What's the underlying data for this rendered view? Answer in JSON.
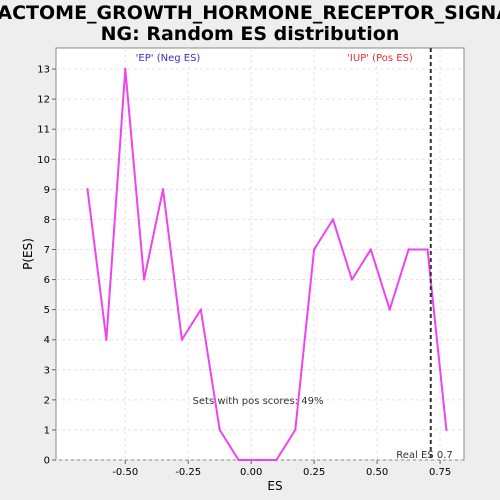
{
  "chart_data": {
    "type": "line",
    "title_lines": [
      "REACTOME_GROWTH_HORMONE_RECEPTOR_SIGNALI",
      "NG: Random ES distribution"
    ],
    "xlabel": "ES",
    "ylabel": "P(ES)",
    "xlim": [
      -0.775,
      0.845
    ],
    "ylim": [
      0,
      13.7
    ],
    "x_ticks": [
      {
        "value": -0.5,
        "label": "-0.50"
      },
      {
        "value": -0.25,
        "label": "-0.25"
      },
      {
        "value": 0.0,
        "label": "0.00"
      },
      {
        "value": 0.25,
        "label": "0.25"
      },
      {
        "value": 0.5,
        "label": "0.50"
      },
      {
        "value": 0.75,
        "label": "0.75"
      }
    ],
    "y_ticks": [
      0,
      1,
      2,
      3,
      4,
      5,
      6,
      7,
      8,
      9,
      10,
      11,
      12,
      13
    ],
    "grid": true,
    "series_color": "#ee44ee",
    "series": [
      {
        "x": [
          -0.65,
          -0.575,
          -0.5,
          -0.425,
          -0.35,
          -0.275,
          -0.2,
          -0.125,
          -0.05,
          0.025,
          0.1,
          0.175,
          0.25,
          0.325,
          0.4,
          0.475,
          0.55,
          0.625,
          0.7,
          0.775
        ],
        "values": [
          9,
          4,
          13,
          6,
          9,
          4,
          5,
          1,
          0,
          0,
          0,
          1,
          7,
          8,
          6,
          7,
          5,
          7,
          7,
          1
        ]
      }
    ],
    "real_es": {
      "value": 0.713,
      "label": "Real ES 0.7",
      "color": "#333333"
    },
    "annotations": [
      {
        "text": "'EP' (Neg ES)",
        "color": "#3333cc",
        "position": "top-left"
      },
      {
        "text": "'IUP' (Pos ES)",
        "color": "#dd3333",
        "position": "top-right"
      },
      {
        "text": "Sets with pos scores: 49%",
        "color": "#333333",
        "position": "lower-middle"
      }
    ]
  }
}
